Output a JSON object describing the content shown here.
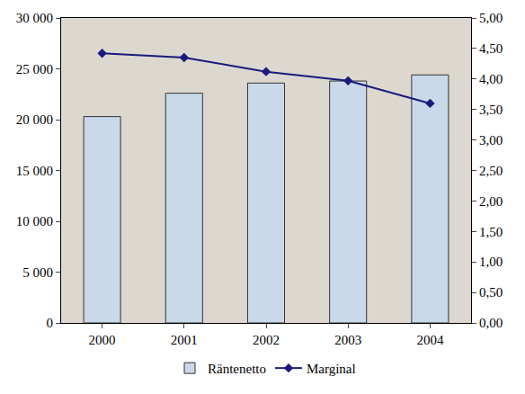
{
  "chart_data": {
    "type": "bar",
    "categories": [
      "2000",
      "2001",
      "2002",
      "2003",
      "2004"
    ],
    "series": [
      {
        "name": "Räntenetto",
        "type": "bar",
        "color": "#c9d9e9",
        "values": [
          20300,
          22600,
          23600,
          23800,
          24400
        ]
      },
      {
        "name": "Marginal",
        "type": "line",
        "color": "#1a1a7a",
        "marker": "diamond",
        "line_style": "solid",
        "axis": "y2",
        "values": [
          4.42,
          4.35,
          4.12,
          3.97,
          3.6
        ]
      }
    ],
    "ylim": [
      0,
      30000
    ],
    "yticks": [
      0,
      {
        "value": 5000,
        "label": "5 000"
      },
      {
        "value": 10000,
        "label": "10 000"
      },
      {
        "value": 15000,
        "label": "15 000"
      },
      {
        "value": 20000,
        "label": "20 000"
      },
      {
        "value": 25000,
        "label": "25 000"
      },
      {
        "value": 30000,
        "label": "30 000"
      }
    ],
    "y2lim": [
      0,
      5
    ],
    "y2ticks": [
      {
        "value": 0,
        "label": "0,00"
      },
      {
        "value": 0.5,
        "label": "0,50"
      },
      {
        "value": 1,
        "label": "1,00"
      },
      {
        "value": 1.5,
        "label": "1,50"
      },
      {
        "value": 2,
        "label": "2,00"
      },
      {
        "value": 2.5,
        "label": "2,50"
      },
      {
        "value": 3,
        "label": "3,00"
      },
      {
        "value": 3.5,
        "label": "3,50"
      },
      {
        "value": 4,
        "label": "4,00"
      },
      {
        "value": 4.5,
        "label": "4,50"
      },
      {
        "value": 5,
        "label": "5,00"
      }
    ],
    "grid": false,
    "legend": "bottom"
  }
}
